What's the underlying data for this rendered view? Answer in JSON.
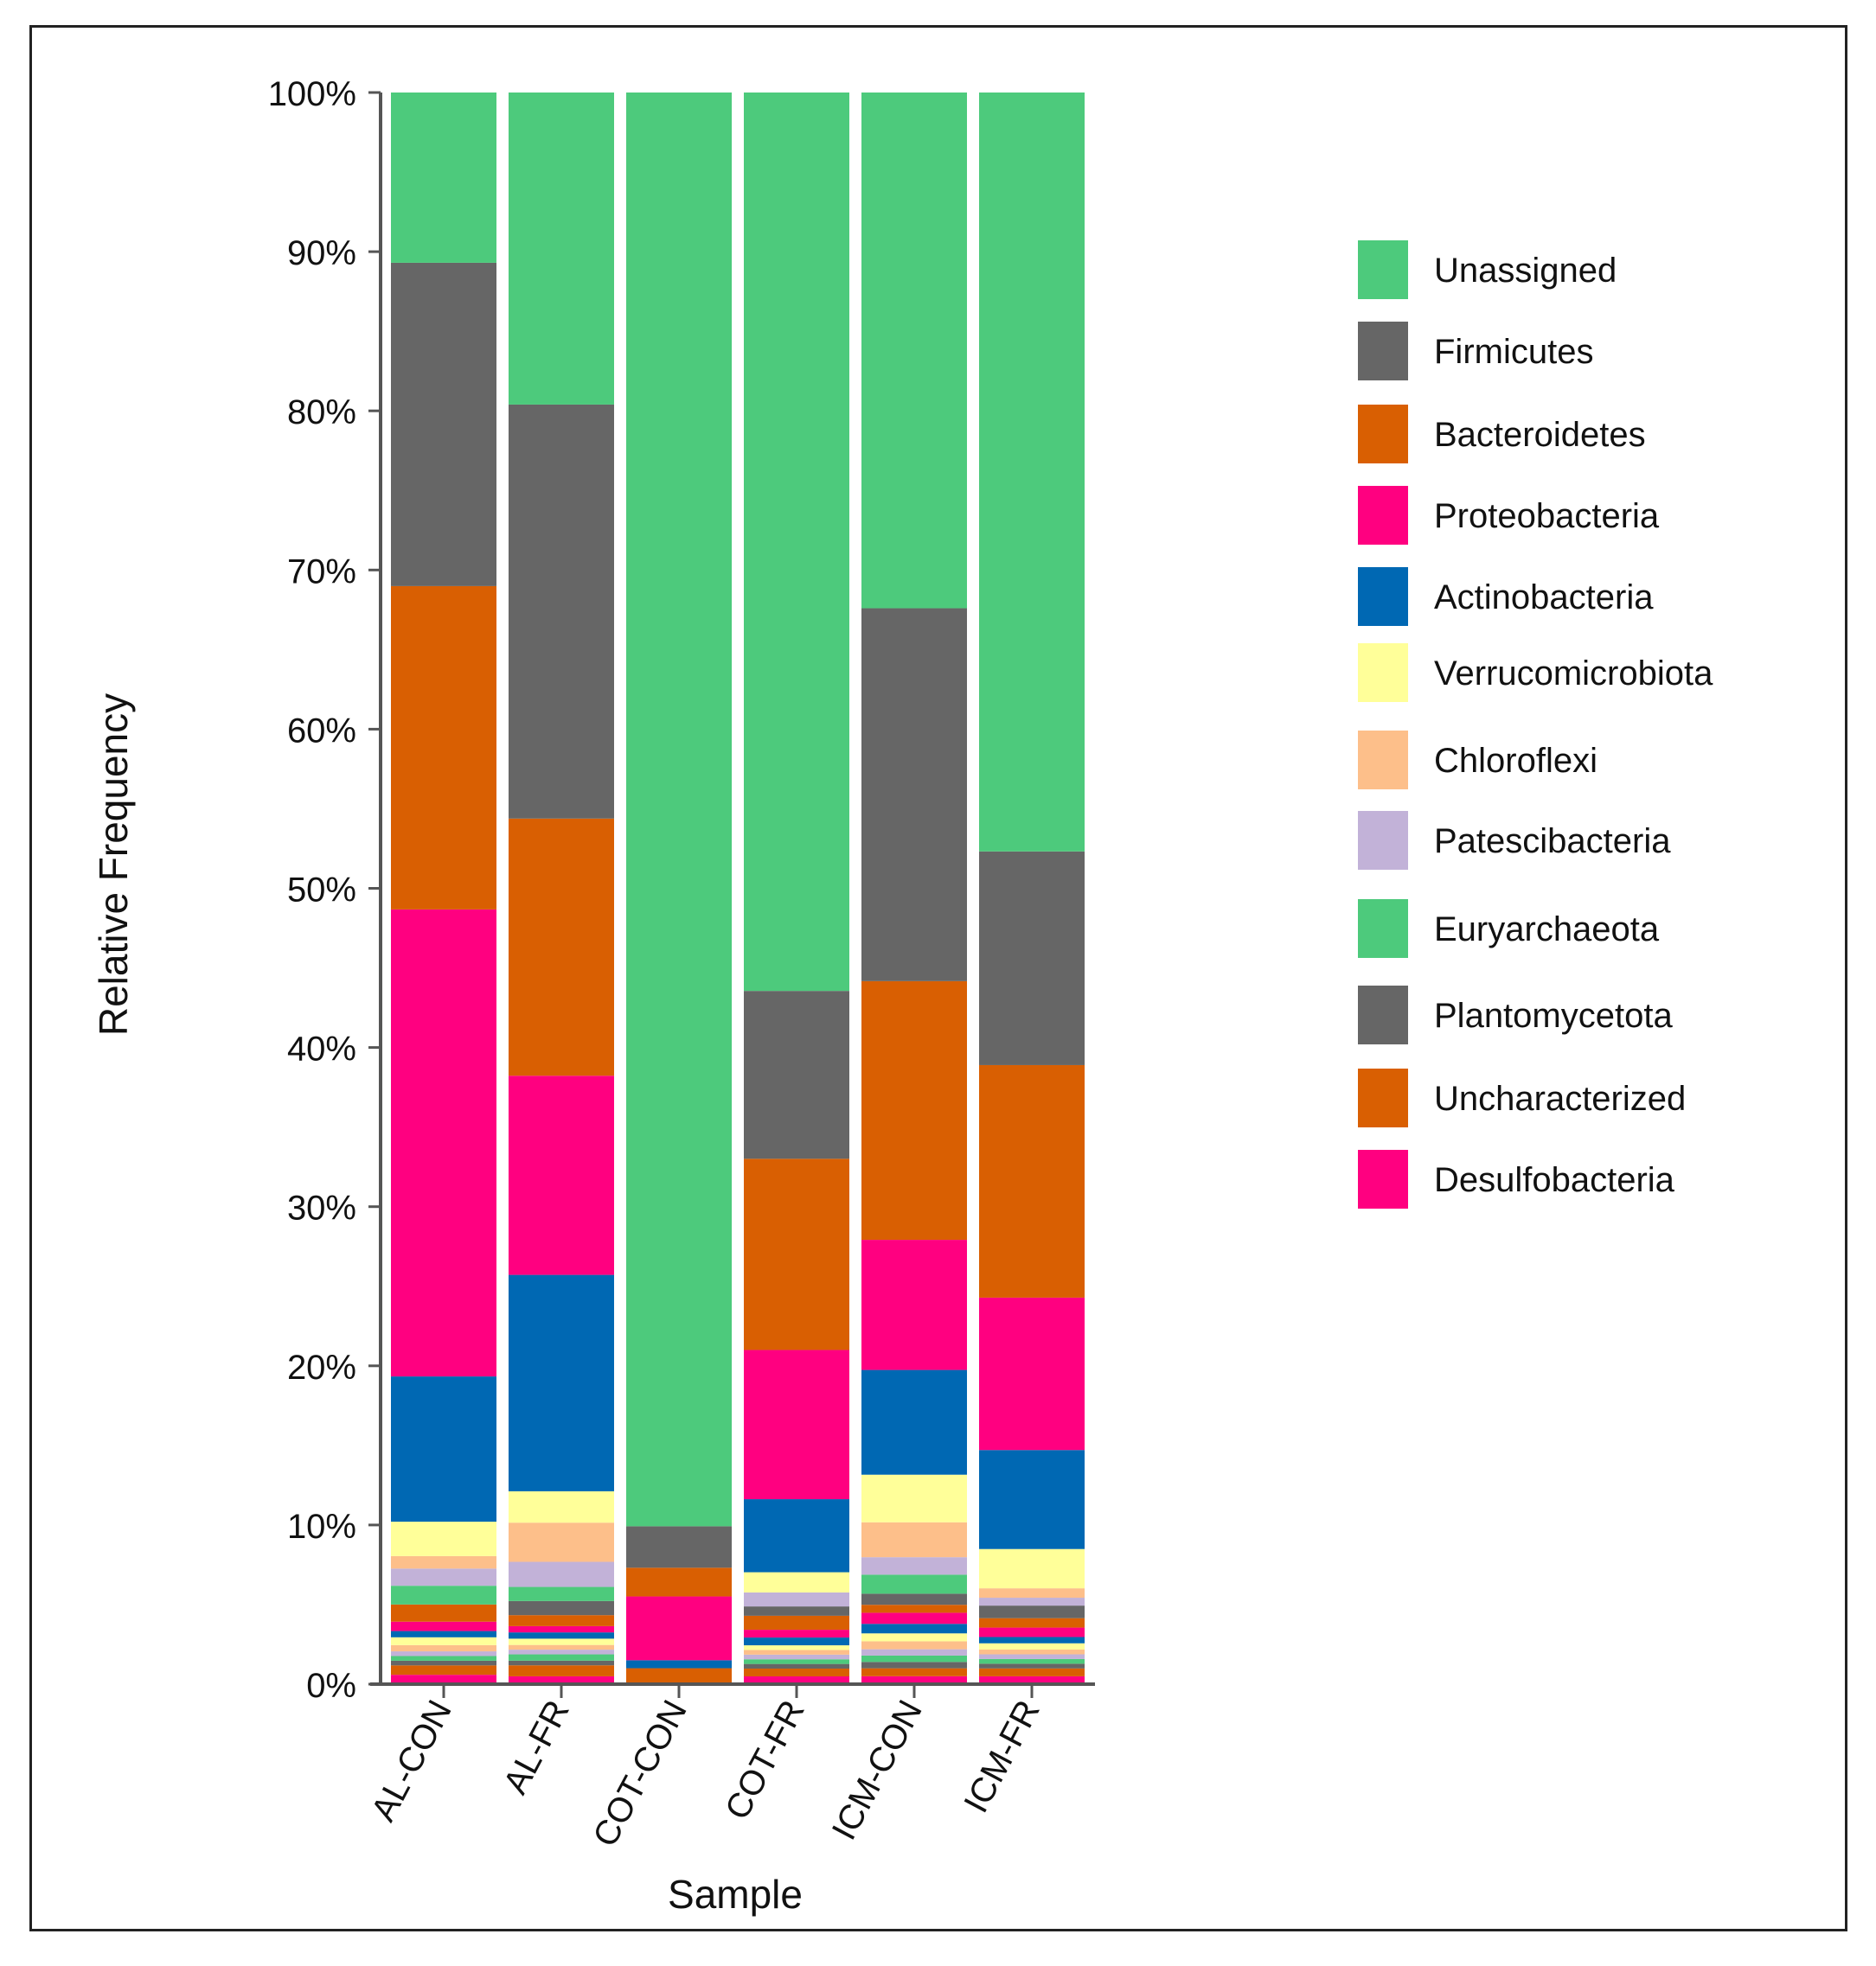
{
  "chart_data": {
    "type": "bar",
    "stacked": true,
    "title": "",
    "xlabel": "Sample",
    "ylabel": "Relative Frequency",
    "ylim": [
      0,
      100
    ],
    "yticks": [
      0,
      10,
      20,
      30,
      40,
      50,
      60,
      70,
      80,
      90,
      100
    ],
    "ytick_labels": [
      "0%",
      "10%",
      "20%",
      "30%",
      "40%",
      "50%",
      "60%",
      "70%",
      "80%",
      "90%",
      "100%"
    ],
    "categories": [
      "AL-CON",
      "AL-FR",
      "COT-CON",
      "COT-FR",
      "ICM-CON",
      "ICM-FR"
    ],
    "legend_position": "right",
    "series": [
      {
        "name": "Desulfobacteria",
        "color": "#ff0080",
        "values": [
          0.6,
          0.5,
          0.0,
          0.5,
          0.5,
          0.5
        ]
      },
      {
        "name": "Uncharacterized",
        "color": "#d95f02",
        "values": [
          0.6,
          0.7,
          1.0,
          0.5,
          0.5,
          0.5
        ]
      },
      {
        "name": "Plantomycetota",
        "color": "#666666",
        "values": [
          0.3,
          0.3,
          0.0,
          0.3,
          0.4,
          0.3
        ]
      },
      {
        "name": "Euryarchaeota",
        "color": "#4dca7c",
        "values": [
          0.3,
          0.4,
          0.0,
          0.3,
          0.4,
          0.3
        ]
      },
      {
        "name": "Patescibacteria",
        "color": "#c2b2d8",
        "values": [
          0.3,
          0.3,
          0.0,
          0.3,
          0.4,
          0.3
        ]
      },
      {
        "name": "Chloroflexi",
        "color": "#fdbf8a",
        "values": [
          0.4,
          0.3,
          0.0,
          0.3,
          0.5,
          0.3
        ]
      },
      {
        "name": "Verrucomicrobiota",
        "color": "#ffff99",
        "values": [
          0.5,
          0.4,
          0.0,
          0.3,
          0.5,
          0.4
        ]
      },
      {
        "name": "Actinobacteria",
        "color": "#0068b3",
        "values": [
          0.4,
          0.4,
          0.5,
          0.5,
          0.6,
          0.4
        ]
      },
      {
        "name": "Proteobacteria",
        "color": "#ff0080",
        "values": [
          0.6,
          0.4,
          4.0,
          0.5,
          0.7,
          0.6
        ]
      },
      {
        "name": "Bacteroidetes",
        "color": "#d95f02",
        "values": [
          1.1,
          0.7,
          1.8,
          0.9,
          0.5,
          0.6
        ]
      },
      {
        "name": "Firmicutes",
        "color": "#666666",
        "values": [
          0.0,
          0.9,
          2.6,
          0.6,
          0.7,
          0.8
        ]
      },
      {
        "name": "Unassigned",
        "color": "#4dca7c",
        "values": [
          1.2,
          0.9,
          0.0,
          0.0,
          1.2,
          0.0
        ]
      },
      {
        "name": "Patescibacteria",
        "color": "#c2b2d8",
        "values": [
          1.1,
          1.6,
          0.0,
          0.9,
          1.1,
          0.5
        ]
      },
      {
        "name": "Chloroflexi",
        "color": "#fdbf8a",
        "values": [
          0.8,
          2.5,
          0.0,
          0.0,
          2.2,
          0.6
        ]
      },
      {
        "name": "Verrucomicrobiota",
        "color": "#ffff99",
        "values": [
          2.2,
          2.0,
          0.0,
          1.3,
          3.0,
          2.5
        ]
      },
      {
        "name": "Actinobacteria",
        "color": "#0068b3",
        "values": [
          9.3,
          13.8,
          0.0,
          4.7,
          6.6,
          6.3
        ]
      },
      {
        "name": "Proteobacteria",
        "color": "#ff0080",
        "values": [
          29.9,
          12.7,
          0.0,
          9.6,
          8.2,
          9.7
        ]
      },
      {
        "name": "Bacteroidetes",
        "color": "#d95f02",
        "values": [
          20.7,
          16.4,
          0.0,
          12.3,
          16.3,
          14.8
        ]
      },
      {
        "name": "Firmicutes",
        "color": "#666666",
        "values": [
          20.7,
          26.4,
          0.0,
          10.8,
          23.5,
          13.6
        ]
      },
      {
        "name": "Unassigned",
        "color": "#4dca7c",
        "values": [
          10.9,
          19.9,
          89.9,
          57.8,
          32.5,
          48.3
        ]
      }
    ],
    "legend": [
      {
        "label": "Unassigned",
        "color": "#4dca7c"
      },
      {
        "label": "Firmicutes",
        "color": "#666666"
      },
      {
        "label": "Bacteroidetes",
        "color": "#d95f02"
      },
      {
        "label": "Proteobacteria",
        "color": "#ff0080"
      },
      {
        "label": "Actinobacteria",
        "color": "#0068b3"
      },
      {
        "label": "Verrucomicrobiota",
        "color": "#ffff99"
      },
      {
        "label": "Chloroflexi",
        "color": "#fdbf8a"
      },
      {
        "label": "Patescibacteria",
        "color": "#c2b2d8"
      },
      {
        "label": "Euryarchaeota",
        "color": "#4dca7c"
      },
      {
        "label": "Plantomycetota",
        "color": "#666666"
      },
      {
        "label": "Uncharacterized",
        "color": "#d95f02"
      },
      {
        "label": "Desulfobacteria",
        "color": "#ff0080"
      }
    ]
  }
}
